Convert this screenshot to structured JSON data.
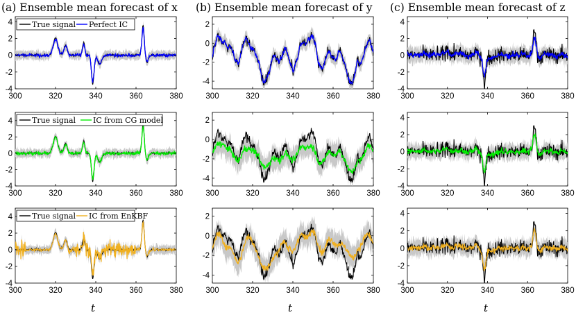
{
  "figure": {
    "column_titles": [
      "(a) Ensemble mean forecast of x",
      "(b) Ensemble mean forecast of y",
      "(c) Ensemble mean forecast of z"
    ],
    "x_label": "t"
  },
  "chart_data": [
    {
      "type": "line",
      "title": "(a) Ensemble mean forecast of x",
      "xlabel": "",
      "ylabel": "",
      "xlim": [
        300,
        380
      ],
      "ylim": [
        -4,
        4.6
      ],
      "xticks": [
        "300",
        "320",
        "340",
        "360",
        "380"
      ],
      "yticks": [
        "-4",
        "-2",
        "0",
        "2",
        "4"
      ],
      "legend": [
        "True signal",
        "Perfect IC"
      ],
      "series": [
        {
          "name": "True signal",
          "color": "#000000"
        },
        {
          "name": "Perfect IC",
          "color": "#0000ff"
        }
      ]
    },
    {
      "type": "line",
      "title": "(b) Ensemble mean forecast of y",
      "xlabel": "",
      "ylabel": "",
      "xlim": [
        300,
        380
      ],
      "ylim": [
        -4.8,
        2.8
      ],
      "xticks": [
        "300",
        "320",
        "340",
        "360",
        "380"
      ],
      "yticks": [
        "-4",
        "-2",
        "0",
        "2"
      ],
      "legend": [],
      "series": [
        {
          "name": "True signal",
          "color": "#000000"
        },
        {
          "name": "Perfect IC",
          "color": "#0000ff"
        }
      ]
    },
    {
      "type": "line",
      "title": "(c) Ensemble mean forecast of z",
      "xlabel": "",
      "ylabel": "",
      "xlim": [
        300,
        380
      ],
      "ylim": [
        -4,
        4.6
      ],
      "xticks": [
        "300",
        "320",
        "340",
        "360",
        "380"
      ],
      "yticks": [
        "-4",
        "-2",
        "0",
        "2",
        "4"
      ],
      "legend": [],
      "series": [
        {
          "name": "True signal",
          "color": "#000000"
        },
        {
          "name": "Perfect IC",
          "color": "#0000ff"
        }
      ]
    },
    {
      "type": "line",
      "title": "",
      "xlabel": "",
      "ylabel": "",
      "xlim": [
        300,
        380
      ],
      "ylim": [
        -4,
        5
      ],
      "xticks": [
        "300",
        "320",
        "340",
        "360",
        "380"
      ],
      "yticks": [
        "-4",
        "-2",
        "0",
        "2",
        "4"
      ],
      "legend": [
        "True signal",
        "IC from CG model"
      ],
      "series": [
        {
          "name": "True signal",
          "color": "#000000"
        },
        {
          "name": "IC from CG model",
          "color": "#00ee00"
        }
      ]
    },
    {
      "type": "line",
      "title": "",
      "xlabel": "",
      "ylabel": "",
      "xlim": [
        300,
        380
      ],
      "ylim": [
        -4.8,
        2.8
      ],
      "xticks": [
        "300",
        "320",
        "340",
        "360",
        "380"
      ],
      "yticks": [
        "-4",
        "-2",
        "0",
        "2"
      ],
      "legend": [],
      "series": [
        {
          "name": "True signal",
          "color": "#000000"
        },
        {
          "name": "IC from CG model",
          "color": "#00ee00"
        }
      ]
    },
    {
      "type": "line",
      "title": "",
      "xlabel": "",
      "ylabel": "",
      "xlim": [
        300,
        380
      ],
      "ylim": [
        -4,
        4.6
      ],
      "xticks": [
        "300",
        "320",
        "340",
        "360",
        "380"
      ],
      "yticks": [
        "-4",
        "-2",
        "0",
        "2",
        "4"
      ],
      "legend": [],
      "series": [
        {
          "name": "True signal",
          "color": "#000000"
        },
        {
          "name": "IC from CG model",
          "color": "#00ee00"
        }
      ]
    },
    {
      "type": "line",
      "title": "",
      "xlabel": "t",
      "ylabel": "",
      "xlim": [
        300,
        380
      ],
      "ylim": [
        -4,
        5
      ],
      "xticks": [
        "300",
        "320",
        "340",
        "360",
        "380"
      ],
      "yticks": [
        "-4",
        "-2",
        "0",
        "2",
        "4"
      ],
      "legend": [
        "True signal",
        "IC from EnKBF"
      ],
      "series": [
        {
          "name": "True signal",
          "color": "#000000"
        },
        {
          "name": "IC from EnKBF",
          "color": "#f0b020"
        }
      ]
    },
    {
      "type": "line",
      "title": "",
      "xlabel": "t",
      "ylabel": "",
      "xlim": [
        300,
        380
      ],
      "ylim": [
        -4.8,
        2.8
      ],
      "xticks": [
        "300",
        "320",
        "340",
        "360",
        "380"
      ],
      "yticks": [
        "-4",
        "-2",
        "0",
        "2"
      ],
      "legend": [],
      "series": [
        {
          "name": "True signal",
          "color": "#000000"
        },
        {
          "name": "IC from EnKBF",
          "color": "#f0b020"
        }
      ]
    },
    {
      "type": "line",
      "title": "",
      "xlabel": "t",
      "ylabel": "",
      "xlim": [
        300,
        380
      ],
      "ylim": [
        -4,
        4.6
      ],
      "xticks": [
        "300",
        "320",
        "340",
        "360",
        "380"
      ],
      "yticks": [
        "-4",
        "-2",
        "0",
        "2",
        "4"
      ],
      "legend": [],
      "series": [
        {
          "name": "True signal",
          "color": "#000000"
        },
        {
          "name": "IC from EnKBF",
          "color": "#f0b020"
        }
      ]
    }
  ]
}
